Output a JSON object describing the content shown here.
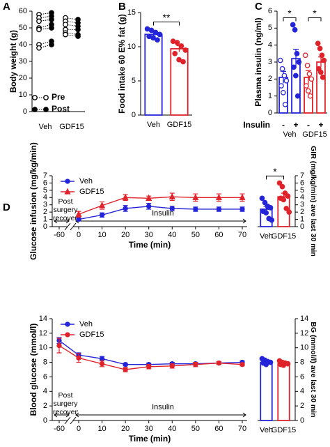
{
  "chart_data": [
    {
      "type": "paired-dot",
      "panel_label": "A",
      "y_label": "Body weight (g)",
      "categories": [
        "Veh",
        "GDF15"
      ],
      "series": [
        {
          "name": "Pre",
          "color": "#000000",
          "filled": false,
          "values": [
            [
              58,
              56,
              54,
              50,
              49,
              40,
              38
            ],
            [
              56,
              54,
              52,
              49,
              47,
              46
            ]
          ]
        },
        {
          "name": "Post",
          "color": "#000000",
          "filled": true,
          "values": [
            [
              59,
              57,
              55,
              52,
              50,
              42,
              40
            ],
            [
              55,
              53,
              51,
              49,
              46,
              45
            ]
          ]
        }
      ],
      "ylim": [
        0,
        60
      ],
      "yticks": [
        0,
        10,
        20,
        30,
        40,
        50,
        60
      ],
      "legend": "lower left"
    },
    {
      "type": "bar",
      "panel_label": "B",
      "y_label": "Food intake 60 E% fat (g)",
      "categories": [
        "Veh",
        "GDF15"
      ],
      "values": [
        11.8,
        9.7
      ],
      "errors": [
        0.3,
        0.45
      ],
      "colors": [
        "#2424d8",
        "#e0222a"
      ],
      "point_filled": [
        true,
        true
      ],
      "points": [
        [
          12.6,
          12.4,
          12.1,
          11.8,
          11.5,
          11.3,
          11.0
        ],
        [
          10.8,
          10.6,
          10.1,
          9.5,
          9.0,
          8.1,
          7.8
        ]
      ],
      "ylim": [
        0,
        15
      ],
      "yticks": [
        0,
        5,
        10,
        15
      ],
      "y_axis_side": "left",
      "annotations": [
        "**"
      ]
    },
    {
      "type": "bar",
      "panel_label": "C",
      "y_label": "Plasma insulin (ng/ml)",
      "row_label": "Insulin",
      "categories": [
        "-",
        "+",
        "-",
        "+"
      ],
      "groups": [
        "Veh",
        "GDF15"
      ],
      "values": [
        2.1,
        3.2,
        2.1,
        3.0
      ],
      "errors": [
        0.35,
        0.55,
        0.4,
        0.3
      ],
      "colors": [
        "#2424d8",
        "#2424d8",
        "#e0222a",
        "#e0222a"
      ],
      "point_filled": [
        false,
        true,
        false,
        true
      ],
      "points": [
        [
          3.1,
          2.6,
          2.2,
          1.9,
          1.6,
          1.2,
          0.5
        ],
        [
          5.2,
          4.9,
          3.5,
          3.0,
          2.7,
          2.2,
          1.0
        ],
        [
          3.4,
          2.8,
          2.3,
          2.0,
          1.6,
          1.3,
          1.0
        ],
        [
          4.1,
          3.8,
          3.4,
          3.1,
          2.6,
          2.4,
          2.1
        ]
      ],
      "ylim": [
        0,
        6
      ],
      "yticks": [
        0,
        1,
        2,
        3,
        4,
        5,
        6
      ],
      "y_axis_side": "left",
      "annotations": [
        "*",
        "*"
      ]
    },
    {
      "type": "line",
      "panel_label": "D",
      "y_label": "Glucose infusion (mg/kg/min)",
      "x_label": "Time (min)",
      "x": [
        0,
        10,
        20,
        30,
        40,
        50,
        60,
        70
      ],
      "xticks": [
        -60,
        0,
        10,
        20,
        30,
        40,
        50,
        60,
        70
      ],
      "series": [
        {
          "name": "Veh",
          "color": "#2424d8",
          "marker": "circle",
          "values": [
            1.0,
            1.6,
            2.5,
            2.8,
            2.5,
            2.4,
            2.4,
            2.4
          ],
          "errors": [
            0.15,
            0.3,
            0.4,
            0.4,
            0.3,
            0.3,
            0.3,
            0.3
          ]
        },
        {
          "name": "GDF15",
          "color": "#e0222a",
          "marker": "triangle",
          "values": [
            1.7,
            2.9,
            4.0,
            3.9,
            4.1,
            4.0,
            4.0,
            4.0
          ],
          "errors": [
            0.4,
            0.5,
            0.4,
            0.3,
            0.5,
            0.5,
            0.5,
            0.5
          ]
        }
      ],
      "ylim": [
        0,
        7
      ],
      "yticks": [
        0,
        1,
        2,
        3,
        4,
        5,
        6,
        7
      ],
      "legend": "upper left",
      "annotations": [
        "Post surgery recovery",
        "Insulin"
      ]
    },
    {
      "type": "bar",
      "y_label": "GIR (mg/kg/min) ave last 30 min",
      "categories": [
        "Veh",
        "GDF15"
      ],
      "values": [
        2.4,
        4.1
      ],
      "errors": [
        0.4,
        0.5
      ],
      "colors": [
        "#2424d8",
        "#e0222a"
      ],
      "point_filled": [
        true,
        true
      ],
      "points": [
        [
          3.9,
          3.3,
          2.8,
          2.6,
          2.1,
          1.9,
          1.1,
          0.9
        ],
        [
          6.0,
          5.5,
          4.6,
          4.2,
          3.9,
          3.7,
          2.5,
          2.0
        ]
      ],
      "ylim": [
        0,
        7
      ],
      "yticks": [
        0,
        1,
        2,
        3,
        4,
        5,
        6,
        7
      ],
      "y_axis_side": "right",
      "annotations": [
        "*"
      ]
    },
    {
      "type": "line",
      "y_label": "Blood glucose (mmol/l)",
      "x_label": "Time (min)",
      "x": [
        -60,
        0,
        10,
        20,
        30,
        40,
        50,
        60,
        70
      ],
      "xticks": [
        -60,
        0,
        10,
        20,
        30,
        40,
        50,
        60,
        70
      ],
      "series": [
        {
          "name": "Veh",
          "color": "#2424d8",
          "marker": "circle",
          "values": [
            11.0,
            9.0,
            8.5,
            7.7,
            7.7,
            7.8,
            7.8,
            7.9,
            8.0
          ],
          "errors": [
            0.4,
            0.3,
            0.3,
            0.2,
            0.2,
            0.2,
            0.2,
            0.2,
            0.2
          ]
        },
        {
          "name": "GDF15",
          "color": "#e0222a",
          "marker": "circle",
          "values": [
            10.3,
            8.6,
            7.8,
            7.0,
            7.4,
            7.5,
            7.7,
            7.9,
            7.7
          ],
          "errors": [
            1.0,
            0.6,
            0.4,
            0.3,
            0.3,
            0.3,
            0.3,
            0.2,
            0.2
          ]
        }
      ],
      "ylim": [
        0,
        14
      ],
      "yticks": [
        0,
        2,
        4,
        6,
        8,
        10,
        12,
        14
      ],
      "legend": "upper left",
      "annotations": [
        "Post surgery recovery",
        "Insulin"
      ]
    },
    {
      "type": "bar",
      "y_label": "BG (mmol/l) ave last 30 min",
      "categories": [
        "Veh",
        "GDF15"
      ],
      "values": [
        8.0,
        7.8
      ],
      "errors": [
        0.15,
        0.1
      ],
      "colors": [
        "#2424d8",
        "#e0222a"
      ],
      "point_filled": [
        true,
        true
      ],
      "points": [
        [
          8.5,
          8.3,
          8.1,
          8.0,
          7.9,
          7.7
        ],
        [
          8.2,
          8.0,
          7.9,
          7.8,
          7.7,
          7.6
        ]
      ],
      "ylim": [
        0,
        14
      ],
      "yticks": [
        0,
        2,
        4,
        6,
        8,
        10,
        12,
        14
      ],
      "y_axis_side": "right"
    }
  ]
}
